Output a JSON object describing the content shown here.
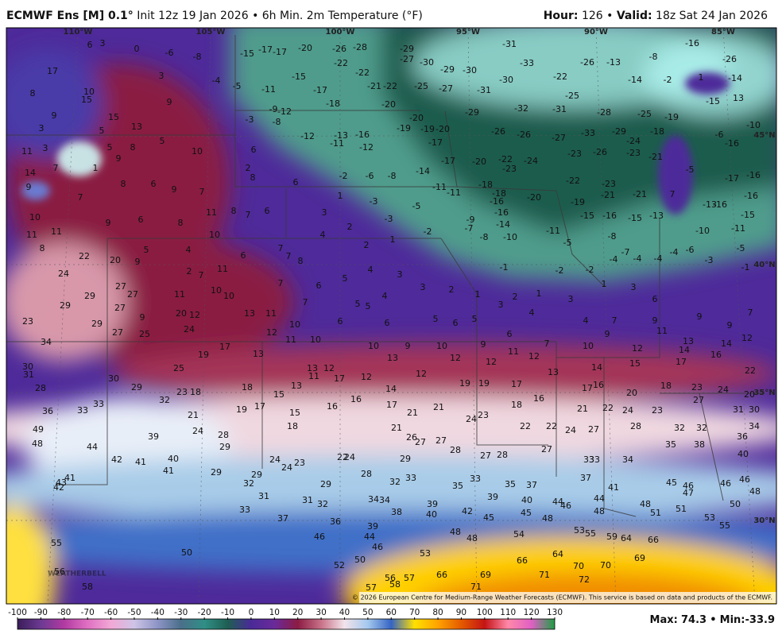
{
  "header": {
    "model": "ECMWF Ens [M] 0.1°",
    "run": "Init 12z 19 Jan 2026 • 6h Min. 2m Temperature (°F)",
    "hour_label": "Hour:",
    "hour": 126,
    "separator": "•",
    "valid_label": "Valid:",
    "valid": "18z Sat 24 Jan 2026"
  },
  "map": {
    "lon_labels": [
      "110°W",
      "105°W",
      "100°W",
      "95°W",
      "90°W",
      "85°W"
    ],
    "lat_labels": [
      "45°N",
      "40°N",
      "35°N",
      "30°N"
    ],
    "credit": "© 2026 European Centre for Medium-Range Weather Forecasts (ECMWF). This service is based on data and products of the ECMWF.",
    "logo": "WEATHERBELL",
    "temps": [
      [
        6,
        3,
        0,
        -6,
        -8,
        -15,
        -17,
        -17,
        -20,
        -26,
        -28,
        -29,
        -31,
        -16
      ],
      [
        -27,
        -30,
        -33,
        -26,
        -13,
        -8,
        -26
      ],
      [
        17,
        3,
        -4,
        -5,
        -15,
        -22,
        -22,
        -29,
        -30,
        -30,
        -22,
        -14,
        -2,
        1,
        -14
      ],
      [
        8,
        10,
        15,
        9,
        -11,
        -17,
        -21,
        -22,
        -25,
        -27,
        -31,
        -25,
        13
      ],
      [
        9,
        15,
        -3,
        -9,
        -12,
        -8,
        -18,
        -20,
        -20,
        -29,
        -32,
        -31,
        -28,
        -25,
        -15,
        -19
      ],
      [
        3,
        5,
        13,
        -19,
        -19,
        -20,
        -26,
        -26,
        -27,
        -33,
        -29,
        -18,
        -6,
        -10
      ],
      [
        11,
        3,
        5,
        8,
        5,
        10,
        6,
        -12,
        -13,
        -11,
        -16,
        -12,
        -17,
        -24,
        -16
      ],
      [
        14,
        7,
        1,
        9,
        6,
        9,
        2,
        8,
        -2,
        -6,
        -8,
        -14,
        -17,
        -20,
        -22,
        -23,
        -24,
        -23,
        -26,
        -23,
        -21,
        -5,
        -17,
        -16
      ],
      [
        9,
        7,
        8,
        7,
        6,
        1,
        -3,
        -11,
        -11,
        -18,
        -18,
        -16,
        -20,
        -22,
        -23,
        -21,
        -21,
        7,
        -16
      ],
      [
        10,
        9,
        6,
        8,
        11,
        8,
        7,
        6,
        3,
        -5,
        -9,
        -16,
        -19,
        -15,
        -16,
        -15,
        -13,
        -13,
        -16,
        -15
      ],
      [
        11,
        11,
        10,
        4,
        2,
        -3,
        -2,
        -7,
        -8,
        -14,
        -10,
        -11,
        -8,
        -10,
        -11
      ],
      [
        8,
        22,
        5,
        4,
        6,
        7,
        7,
        8,
        2,
        1,
        -5,
        -7,
        -4,
        -4,
        -4,
        -4,
        -6,
        -3,
        -5,
        -1
      ],
      [
        24,
        20,
        9,
        2,
        7,
        11,
        -1,
        -2,
        -2
      ],
      [
        27,
        27,
        11,
        10,
        10,
        7,
        6,
        5,
        4,
        3,
        3,
        2,
        1,
        2,
        1,
        1,
        3
      ],
      [
        29,
        29,
        27,
        20,
        12,
        13,
        11,
        7,
        5,
        5,
        4,
        3,
        4,
        3,
        6
      ],
      [
        23,
        29,
        9,
        27,
        25,
        24,
        12,
        10,
        6,
        6,
        5,
        6,
        5,
        4,
        7,
        9,
        9,
        7,
        9
      ],
      [
        34,
        17,
        13,
        11,
        10,
        6,
        9,
        11,
        13,
        12,
        14
      ],
      [
        30,
        31,
        19,
        13,
        12,
        11,
        10,
        13,
        9,
        10,
        9,
        11,
        12,
        7,
        10,
        12,
        14,
        16
      ],
      [
        28,
        30,
        29,
        25,
        12,
        12,
        12,
        12,
        13,
        14,
        15,
        17,
        22
      ],
      [
        23,
        18,
        18,
        15,
        13,
        17,
        16,
        14,
        19,
        19,
        17,
        16,
        17,
        16,
        18,
        23,
        24,
        20,
        27,
        20
      ],
      [
        36,
        33,
        33,
        32,
        21,
        19,
        17,
        15,
        16,
        17,
        21,
        21,
        24,
        23,
        18,
        21,
        22,
        24,
        23,
        31,
        30
      ],
      [
        49,
        48,
        39,
        24,
        28,
        18,
        21,
        26,
        27,
        27,
        22,
        22,
        24,
        27,
        28,
        32,
        32,
        34,
        36
      ],
      [
        44,
        29,
        28,
        27,
        28,
        27,
        35,
        38
      ],
      [
        42,
        41,
        40,
        24,
        24,
        23,
        24,
        22,
        29,
        33,
        33,
        34,
        40
      ],
      [
        41,
        43,
        42,
        41,
        29,
        29,
        28,
        32,
        33,
        29,
        35,
        33,
        35,
        37,
        37,
        41,
        45,
        46,
        47,
        46,
        46,
        48
      ],
      [
        32,
        31,
        31,
        32,
        34,
        34,
        38,
        39,
        40,
        39,
        40,
        44,
        46,
        44,
        48,
        48,
        51,
        51,
        50,
        33,
        37,
        36,
        42,
        45,
        45,
        48
      ],
      [
        55,
        50,
        39,
        44,
        46,
        46,
        48,
        48,
        54,
        53,
        55,
        59,
        64,
        66,
        53,
        55
      ],
      [
        56,
        52,
        50,
        53,
        64,
        66,
        69,
        70,
        70
      ],
      [
        58,
        57,
        56,
        58,
        57,
        66,
        69,
        71,
        72,
        71
      ]
    ]
  },
  "colorbar": {
    "ticks": [
      -100,
      -90,
      -80,
      -70,
      -60,
      -50,
      -40,
      -30,
      -20,
      -10,
      0,
      10,
      20,
      30,
      40,
      50,
      60,
      70,
      80,
      90,
      100,
      110,
      120,
      130
    ],
    "colors": [
      "#3a1d58",
      "#6c3a92",
      "#b23aa2",
      "#e070c2",
      "#f2a8d6",
      "#cdc4e6",
      "#8d94c6",
      "#4a6f8a",
      "#2f8f86",
      "#1f5e52",
      "#4a2a98",
      "#6a2a9a",
      "#8c1c44",
      "#c87288",
      "#f2e4ea",
      "#a4c8ee",
      "#3564c4",
      "#ffe000",
      "#ffa200",
      "#e45a00",
      "#c41414",
      "#ff88a8",
      "#e060c4",
      "#1e9e44"
    ]
  },
  "footer": {
    "max_label": "Max:",
    "max": 74.3,
    "separator": "•",
    "min_label": "Min:",
    "min": -33.9
  }
}
